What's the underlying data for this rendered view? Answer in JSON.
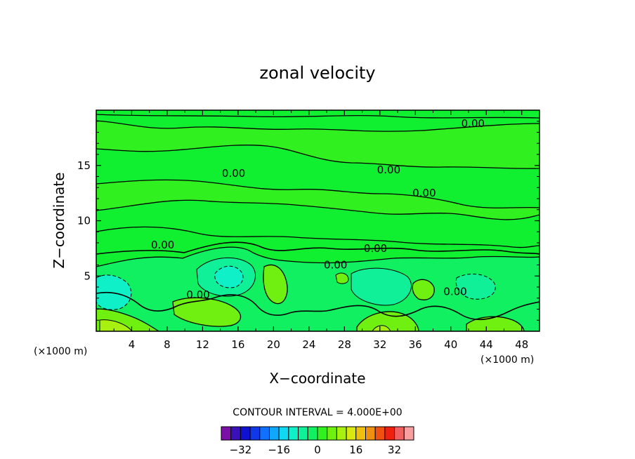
{
  "chart_data": {
    "type": "heatmap",
    "title": "zonal velocity",
    "xlabel": "X−coordinate",
    "ylabel": "Z−coordinate",
    "x_unit_left": "(×1000 m)",
    "x_unit_right": "(×1000 m)",
    "xlim": [
      0,
      50
    ],
    "ylim": [
      0,
      20
    ],
    "x_ticks": [
      4,
      8,
      12,
      16,
      20,
      24,
      28,
      32,
      36,
      40,
      44,
      48
    ],
    "y_ticks": [
      5,
      10,
      15
    ],
    "contour_interval_text": "CONTOUR INTERVAL = 4.000E+00",
    "contour_label": "0.00",
    "contour_label_positions": [
      [
        15.5,
        14.3
      ],
      [
        33.0,
        14.6
      ],
      [
        37.0,
        12.5
      ],
      [
        42.5,
        18.8
      ],
      [
        7.5,
        7.8
      ],
      [
        31.5,
        7.5
      ],
      [
        27.0,
        6.0
      ],
      [
        11.5,
        3.3
      ],
      [
        40.5,
        3.6
      ]
    ],
    "colorbar": {
      "levels": [
        -36,
        -32,
        -28,
        -24,
        -20,
        -16,
        -12,
        -8,
        -4,
        0,
        4,
        8,
        12,
        16,
        20,
        24,
        28,
        32,
        36
      ],
      "tick_labels": [
        "−32",
        "−16",
        "0",
        "16",
        "32"
      ],
      "tick_values": [
        -32,
        -16,
        0,
        16,
        32
      ],
      "colors": [
        "#7a10a8",
        "#3a10b8",
        "#1010d0",
        "#1038e8",
        "#1070ff",
        "#10a8ff",
        "#10d8f0",
        "#10f0c8",
        "#10f098",
        "#10f060",
        "#30f020",
        "#70f010",
        "#a8f010",
        "#d8e810",
        "#f0c010",
        "#f09010",
        "#f05010",
        "#f02010",
        "#f06060",
        "#f8a0a0"
      ]
    },
    "grid": false,
    "legend": "colorbar-bottom-center"
  }
}
